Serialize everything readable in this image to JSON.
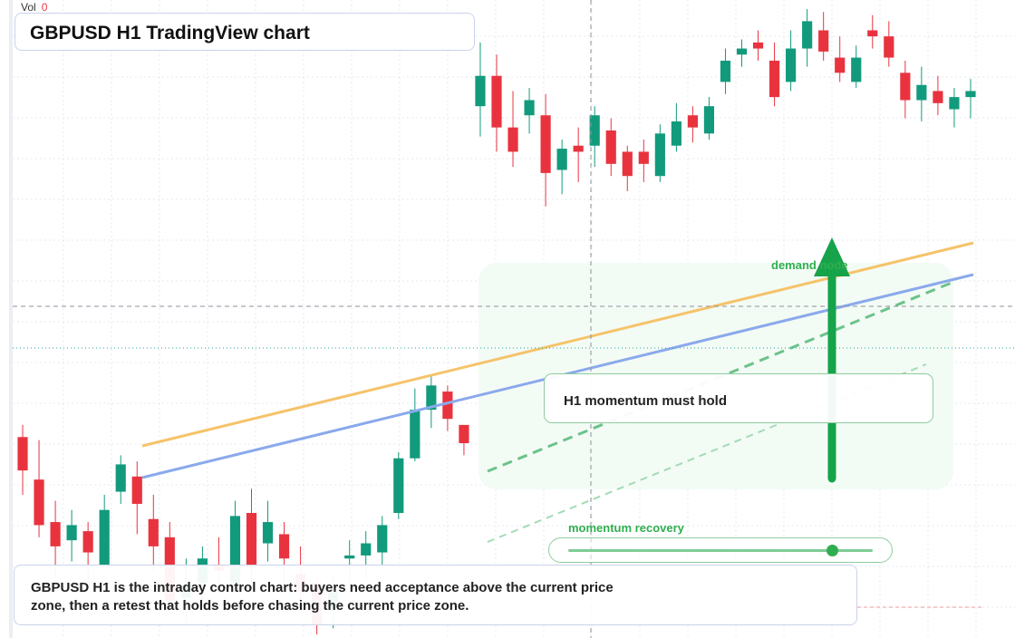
{
  "header": {
    "vol_label": "Vol",
    "vol_value": "0",
    "title": "GBPUSD H1 TradingView chart"
  },
  "annotations": {
    "momentum_box": "H1 momentum must hold",
    "demand_label": "demand node",
    "recovery_label": "momentum recovery",
    "recovery_level": 0.87,
    "note": "GBPUSD H1 is the intraday control chart: buyers need acceptance above the current price zone, then a retest that holds before chasing the current price zone."
  },
  "colors": {
    "up_candle": "#26a69a",
    "down_candle": "#ef5350",
    "up_candle_dark": "#129a7c",
    "down_candle_dark": "#e8333f",
    "orange_trendline": "#f5c36a",
    "blue_trendline": "#8aa9ec",
    "green_accent": "#1f9e48",
    "grid": "#e6e9f0"
  },
  "chart_data": {
    "type": "candlestick",
    "symbol": "GBPUSD",
    "timeframe": "H1",
    "price_units": "chart-relative (no price axis visible)",
    "candles": [
      {
        "o": 66,
        "h": 70,
        "l": 47,
        "c": 55
      },
      {
        "o": 52,
        "h": 65,
        "l": 33,
        "c": 37
      },
      {
        "o": 38,
        "h": 45,
        "l": 20,
        "c": 30
      },
      {
        "o": 32,
        "h": 42,
        "l": 25,
        "c": 37
      },
      {
        "o": 35,
        "h": 38,
        "l": 18,
        "c": 28
      },
      {
        "o": 24,
        "h": 47,
        "l": 24,
        "c": 42
      },
      {
        "o": 48,
        "h": 60,
        "l": 44,
        "c": 57
      },
      {
        "o": 53,
        "h": 58,
        "l": 34,
        "c": 44
      },
      {
        "o": 39,
        "h": 47,
        "l": 22,
        "c": 30
      },
      {
        "o": 33,
        "h": 38,
        "l": 10,
        "c": 12
      },
      {
        "o": 13,
        "h": 26,
        "l": 5,
        "c": 17
      },
      {
        "o": 18,
        "h": 30,
        "l": 11,
        "c": 26
      },
      {
        "o": 24,
        "h": 33,
        "l": 14,
        "c": 22
      },
      {
        "o": 18,
        "h": 45,
        "l": 15,
        "c": 40
      },
      {
        "o": 41,
        "h": 49,
        "l": 18,
        "c": 23
      },
      {
        "o": 31,
        "h": 45,
        "l": 25,
        "c": 38
      },
      {
        "o": 34,
        "h": 38,
        "l": 17,
        "c": 26
      },
      {
        "o": 21,
        "h": 30,
        "l": 10,
        "c": 15
      },
      {
        "o": 18,
        "h": 20,
        "l": 1,
        "c": 4
      },
      {
        "o": 10,
        "h": 20,
        "l": 3,
        "c": 15
      },
      {
        "o": 26,
        "h": 32,
        "l": 18,
        "c": 27
      },
      {
        "o": 27,
        "h": 35,
        "l": 19,
        "c": 31
      },
      {
        "o": 28,
        "h": 40,
        "l": 24,
        "c": 37
      },
      {
        "o": 41,
        "h": 61,
        "l": 39,
        "c": 59
      },
      {
        "o": 59,
        "h": 82,
        "l": 58,
        "c": 75
      },
      {
        "o": 75,
        "h": 86,
        "l": 69,
        "c": 83
      },
      {
        "o": 81,
        "h": 83,
        "l": 68,
        "c": 72
      },
      {
        "o": 70,
        "h": 70,
        "l": 60,
        "c": 64
      },
      {
        "o": 175,
        "h": 196,
        "l": 165,
        "c": 185
      },
      {
        "o": 185,
        "h": 192,
        "l": 160,
        "c": 168
      },
      {
        "o": 168,
        "h": 180,
        "l": 155,
        "c": 160
      },
      {
        "o": 172,
        "h": 181,
        "l": 166,
        "c": 177
      },
      {
        "o": 172,
        "h": 179,
        "l": 142,
        "c": 153
      },
      {
        "o": 154,
        "h": 164,
        "l": 146,
        "c": 161
      },
      {
        "o": 162,
        "h": 168,
        "l": 150,
        "c": 160
      },
      {
        "o": 162,
        "h": 175,
        "l": 155,
        "c": 172
      },
      {
        "o": 167,
        "h": 171,
        "l": 152,
        "c": 156
      },
      {
        "o": 160,
        "h": 162,
        "l": 147,
        "c": 152
      },
      {
        "o": 160,
        "h": 164,
        "l": 150,
        "c": 156
      },
      {
        "o": 152,
        "h": 169,
        "l": 150,
        "c": 166
      },
      {
        "o": 162,
        "h": 176,
        "l": 160,
        "c": 170
      },
      {
        "o": 172,
        "h": 175,
        "l": 163,
        "c": 168
      },
      {
        "o": 166,
        "h": 178,
        "l": 164,
        "c": 175
      },
      {
        "o": 183,
        "h": 194,
        "l": 179,
        "c": 190
      },
      {
        "o": 192,
        "h": 197,
        "l": 188,
        "c": 194
      },
      {
        "o": 196,
        "h": 200,
        "l": 190,
        "c": 194
      },
      {
        "o": 190,
        "h": 196,
        "l": 175,
        "c": 178
      },
      {
        "o": 183,
        "h": 200,
        "l": 180,
        "c": 194
      },
      {
        "o": 194,
        "h": 207,
        "l": 188,
        "c": 203
      },
      {
        "o": 200,
        "h": 206,
        "l": 190,
        "c": 193
      },
      {
        "o": 191,
        "h": 198,
        "l": 183,
        "c": 186
      },
      {
        "o": 183,
        "h": 195,
        "l": 181,
        "c": 191
      },
      {
        "o": 200,
        "h": 205,
        "l": 194,
        "c": 198
      },
      {
        "o": 198,
        "h": 203,
        "l": 188,
        "c": 191
      },
      {
        "o": 186,
        "h": 190,
        "l": 171,
        "c": 177
      },
      {
        "o": 177,
        "h": 188,
        "l": 170,
        "c": 182
      },
      {
        "o": 180,
        "h": 185,
        "l": 172,
        "c": 176
      },
      {
        "o": 174,
        "h": 181,
        "l": 168,
        "c": 178
      },
      {
        "o": 178,
        "h": 184,
        "l": 171,
        "c": 180
      }
    ],
    "pre_breakout_count": 28,
    "x_axis": {
      "label": "",
      "time_labels": []
    },
    "y_axis": {
      "label": "",
      "tick_labels": []
    },
    "grid": true,
    "legend": "none"
  }
}
